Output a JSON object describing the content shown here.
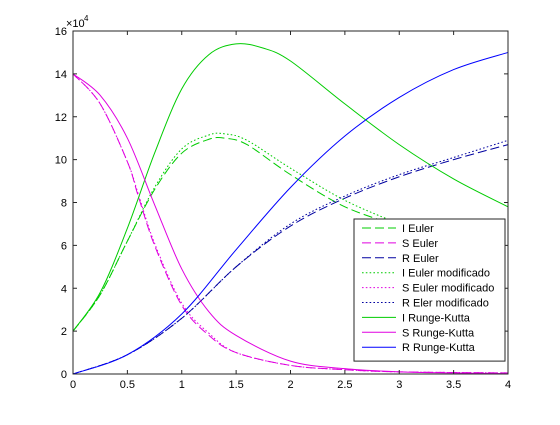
{
  "chart_data": {
    "type": "line",
    "y_multiplier": "×10",
    "y_multiplier_exp": "4",
    "xlim": [
      0,
      4
    ],
    "ylim": [
      0,
      16
    ],
    "x_ticks": [
      0,
      0.5,
      1,
      1.5,
      2,
      2.5,
      3,
      3.5,
      4
    ],
    "x_tick_labels": [
      "0",
      "0.5",
      "1",
      "1.5",
      "2",
      "2.5",
      "3",
      "3.5",
      "4"
    ],
    "y_ticks": [
      0,
      2,
      4,
      6,
      8,
      10,
      12,
      14,
      16
    ],
    "y_tick_labels": [
      "0",
      "2",
      "4",
      "6",
      "8",
      "10",
      "12",
      "14",
      "16"
    ],
    "grid": false,
    "legend_position": "bottom-right",
    "series": [
      {
        "name": "I Euler",
        "color": "#00cc00",
        "style": "dashed",
        "x": [
          0,
          0.25,
          0.5,
          0.75,
          1.0,
          1.25,
          1.4,
          1.6,
          2.0,
          2.5,
          3.0
        ],
        "y": [
          2.0,
          3.7,
          6.2,
          8.6,
          10.3,
          10.95,
          11.0,
          10.7,
          9.3,
          7.8,
          6.9
        ]
      },
      {
        "name": "S Euler",
        "color": "#e000e0",
        "style": "dashed",
        "x": [
          0,
          0.25,
          0.5,
          0.6,
          0.75,
          1.0,
          1.25,
          1.5,
          2.0,
          2.5,
          3.0,
          4.0
        ],
        "y": [
          14.0,
          12.6,
          9.9,
          8.3,
          6.0,
          3.2,
          1.8,
          1.0,
          0.4,
          0.2,
          0.1,
          0.05
        ]
      },
      {
        "name": "R Euler",
        "color": "#0000a0",
        "style": "dashed",
        "x": [
          0,
          0.5,
          1.0,
          1.5,
          2.0,
          2.5,
          3.0,
          3.5,
          4.0
        ],
        "y": [
          0.0,
          0.9,
          2.6,
          5.0,
          6.9,
          8.2,
          9.2,
          10.0,
          10.7
        ]
      },
      {
        "name": "I Euler modificado",
        "color": "#00cc00",
        "style": "dotted",
        "x": [
          0,
          0.25,
          0.5,
          0.75,
          1.0,
          1.25,
          1.4,
          1.6,
          2.0,
          2.5,
          3.0
        ],
        "y": [
          2.0,
          3.7,
          6.2,
          8.7,
          10.5,
          11.15,
          11.2,
          10.9,
          9.6,
          8.1,
          7.0
        ]
      },
      {
        "name": "S Euler modificado",
        "color": "#e000e0",
        "style": "dotted",
        "x": [
          0,
          0.25,
          0.5,
          0.6,
          0.75,
          1.0,
          1.25,
          1.5,
          2.0,
          2.5,
          3.0,
          4.0
        ],
        "y": [
          14.0,
          12.6,
          9.9,
          8.4,
          6.1,
          3.3,
          1.9,
          1.0,
          0.4,
          0.2,
          0.1,
          0.05
        ]
      },
      {
        "name": "R Eler modificado",
        "color": "#0000a0",
        "style": "dotted",
        "x": [
          0,
          0.5,
          1.0,
          1.5,
          2.0,
          2.5,
          3.0,
          3.5,
          4.0
        ],
        "y": [
          0.0,
          0.9,
          2.6,
          5.0,
          7.0,
          8.3,
          9.3,
          10.1,
          10.9
        ]
      },
      {
        "name": "I Runge-Kutta",
        "color": "#00cc00",
        "style": "solid",
        "x": [
          0,
          0.25,
          0.5,
          0.75,
          1.0,
          1.25,
          1.5,
          1.75,
          2.0,
          2.5,
          3.0,
          3.5,
          4.0
        ],
        "y": [
          2.0,
          3.8,
          6.8,
          10.3,
          13.3,
          14.9,
          15.4,
          15.2,
          14.6,
          12.6,
          10.7,
          9.1,
          7.8
        ]
      },
      {
        "name": "S Runge-Kutta",
        "color": "#e000e0",
        "style": "solid",
        "x": [
          0,
          0.25,
          0.5,
          0.75,
          1.0,
          1.25,
          1.5,
          2.0,
          2.5,
          3.0,
          3.5,
          4.0
        ],
        "y": [
          14.0,
          13.0,
          11.0,
          7.9,
          4.9,
          2.9,
          1.8,
          0.6,
          0.25,
          0.1,
          0.05,
          0.02
        ]
      },
      {
        "name": "R Runge-Kutta",
        "color": "#0000ff",
        "style": "solid",
        "x": [
          0,
          0.5,
          1.0,
          1.5,
          2.0,
          2.5,
          3.0,
          3.5,
          4.0
        ],
        "y": [
          0.0,
          0.9,
          2.8,
          5.8,
          8.7,
          11.1,
          12.9,
          14.2,
          15.0
        ]
      }
    ]
  }
}
